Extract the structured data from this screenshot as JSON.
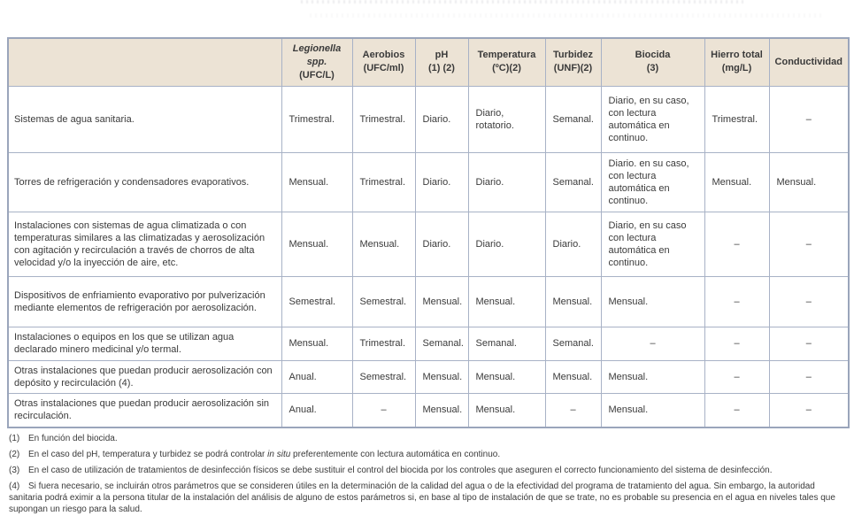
{
  "table": {
    "columns": [
      {
        "title": "",
        "sub": ""
      },
      {
        "title": "Legionella spp.",
        "sub": "(UFC/L)"
      },
      {
        "title": "Aerobios",
        "sub": "(UFC/ml)"
      },
      {
        "title": "pH",
        "sub": "(1) (2)"
      },
      {
        "title": "Temperatura",
        "sub": "(ºC)(2)"
      },
      {
        "title": "Turbidez",
        "sub": "(UNF)(2)"
      },
      {
        "title": "Biocida",
        "sub": "(3)"
      },
      {
        "title": "Hierro total",
        "sub": "(mg/L)"
      },
      {
        "title": "Conductividad",
        "sub": ""
      }
    ],
    "rows": [
      {
        "label": "Sistemas de agua sanitaria.",
        "values": [
          "Trimestral.",
          "Trimestral.",
          "Diario.",
          "Diario, rotatorio.",
          "Semanal.",
          "Diario, en su caso, con lectura automática en continuo.",
          "Trimestral.",
          "–"
        ]
      },
      {
        "label": "Torres de refrigeración y condensadores evaporativos.",
        "values": [
          "Mensual.",
          "Trimestral.",
          "Diario.",
          "Diario.",
          "Semanal.",
          "Diario. en su caso, con lectura automática en continuo.",
          "Mensual.",
          "Mensual."
        ]
      },
      {
        "label": "Instalaciones con sistemas de agua climatizada o con temperaturas similares a las climatizadas y aerosolización con agitación y recirculación a través de chorros de alta velocidad y/o la inyección de aire, etc.",
        "values": [
          "Mensual.",
          "Mensual.",
          "Diario.",
          "Diario.",
          "Diario.",
          "Diario, en su caso con lectura automática en continuo.",
          "–",
          "–"
        ]
      },
      {
        "label": "Dispositivos de enfriamiento evaporativo por pulverización mediante elementos de refrigeración por aerosolización.",
        "values": [
          "Semestral.",
          "Semestral.",
          "Mensual.",
          "Mensual.",
          "Mensual.",
          "Mensual.",
          "–",
          "–"
        ]
      },
      {
        "label": "Instalaciones o equipos en los que se utilizan agua declarado minero medicinal y/o termal.",
        "values": [
          "Mensual.",
          "Trimestral.",
          "Semanal.",
          "Semanal.",
          "Semanal.",
          "–",
          "–",
          "–"
        ]
      },
      {
        "label": "Otras instalaciones que puedan producir aerosolización con depósito y recirculación (4).",
        "values": [
          "Anual.",
          "Semestral.",
          "Mensual.",
          "Mensual.",
          "Mensual.",
          "Mensual.",
          "–",
          "–"
        ]
      },
      {
        "label": "Otras instalaciones que puedan producir aerosolización sin recirculación.",
        "values": [
          "Anual.",
          "–",
          "Mensual.",
          "Mensual.",
          "–",
          "Mensual.",
          "–",
          "–"
        ]
      }
    ]
  },
  "footnotes": [
    {
      "marker": "(1)",
      "text": "En función del biocida."
    },
    {
      "marker": "(2)",
      "pre": "En el caso del pH, temperatura y turbidez se podrá controlar ",
      "italic": "in situ",
      "post": " preferentemente con lectura automática en continuo."
    },
    {
      "marker": "(3)",
      "text": "En el caso de utilización de tratamientos de desinfección físicos se debe sustituir el control del biocida por los controles que aseguren el correcto funcionamiento del sistema de desinfección."
    },
    {
      "marker": "(4)",
      "text": "Si fuera necesario, se incluirán otros parámetros que se consideren útiles en la determinación de la calidad del agua o de la efectividad del programa de tratamiento del agua. Sin embargo, la autoridad sanitaria podrá eximir a la persona titular de la instalación del análisis de alguno de estos parámetros si, en base al tipo de instalación de que se trate, no es probable su presencia en el agua en niveles tales que supongan un riesgo para la salud."
    }
  ],
  "colors": {
    "header_bg": "#ECE3D5",
    "border": "#A8B2C6",
    "text": "#3A3A3A"
  }
}
